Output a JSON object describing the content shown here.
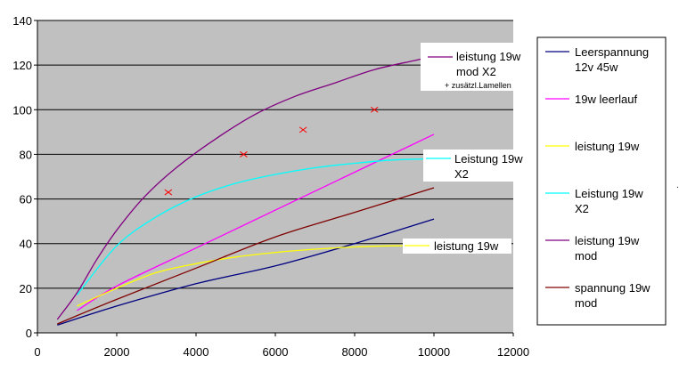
{
  "chart_data": {
    "type": "line",
    "title": "",
    "xlabel": "",
    "ylabel": "",
    "xlim": [
      0,
      12000
    ],
    "ylim": [
      0,
      140
    ],
    "x_ticks": [
      "0",
      "2000",
      "4000",
      "6000",
      "8000",
      "10000",
      "12000"
    ],
    "y_ticks": [
      "0",
      "20",
      "40",
      "60",
      "80",
      "100",
      "120",
      "140"
    ],
    "grid": "horizontal",
    "plot_background": "#c0c0c0",
    "legend_position": "right",
    "series": [
      {
        "name": "Leerspannung 12v 45w",
        "color": "#000080",
        "x": [
          500,
          2000,
          4000,
          6000,
          8000,
          10000
        ],
        "y": [
          3.5,
          12,
          22,
          30,
          40,
          51
        ]
      },
      {
        "name": "19w leerlauf",
        "color": "#ff00ff",
        "x": [
          1000,
          2000,
          4000,
          6000,
          8000,
          10000
        ],
        "y": [
          10,
          21,
          38,
          55,
          72,
          89
        ]
      },
      {
        "name": "leistung 19w",
        "color": "#ffff00",
        "x": [
          1000,
          2000,
          3000,
          4000,
          5000,
          6000,
          7000,
          8000,
          9000,
          10000
        ],
        "y": [
          12,
          20,
          27,
          31,
          34,
          36,
          37.5,
          38.5,
          39,
          39
        ]
      },
      {
        "name": "Leistung 19w X2",
        "color": "#00ffff",
        "x": [
          1000,
          2000,
          3000,
          4000,
          5000,
          6000,
          7000,
          8000,
          9000,
          10000
        ],
        "y": [
          17,
          39,
          52,
          61,
          67,
          71,
          74,
          76,
          77.5,
          78
        ]
      },
      {
        "name": "leistung 19w mod",
        "color": "#800080",
        "x": [
          500,
          1000,
          1500,
          2000,
          2700,
          3500,
          4500,
          5500,
          6500,
          7500,
          8500,
          9500,
          10000
        ],
        "y": [
          6,
          18,
          33,
          46,
          61,
          74,
          87,
          98,
          106,
          112,
          118,
          122,
          124
        ]
      },
      {
        "name": "spannung 19w mod",
        "color": "#800000",
        "x": [
          500,
          2000,
          4000,
          6000,
          8000,
          10000
        ],
        "y": [
          4,
          15,
          29,
          43,
          54,
          65
        ]
      }
    ],
    "markers": {
      "color": "#ff0000",
      "symbol": "x",
      "x": [
        3300,
        5200,
        6700,
        8500
      ],
      "y": [
        63,
        80,
        91,
        100
      ]
    },
    "annotations": [
      {
        "lines": [
          "leistung 19w",
          "mod X2"
        ],
        "subtext": "+ zusätzl.Lamellen"
      },
      {
        "lines": [
          "Leistung 19w",
          "X2"
        ]
      },
      {
        "lines": [
          "leistung 19w"
        ]
      }
    ],
    "legend": [
      {
        "lines": [
          "Leerspannung",
          "12v 45w"
        ],
        "color": "#000080"
      },
      {
        "lines": [
          "19w leerlauf"
        ],
        "color": "#ff00ff"
      },
      {
        "lines": [
          "leistung 19w"
        ],
        "color": "#ffff00"
      },
      {
        "lines": [
          "Leistung 19w",
          "X2"
        ],
        "color": "#00ffff"
      },
      {
        "lines": [
          "leistung 19w",
          "mod"
        ],
        "color": "#800080"
      },
      {
        "lines": [
          "spannung 19w",
          "mod"
        ],
        "color": "#800000"
      }
    ]
  }
}
